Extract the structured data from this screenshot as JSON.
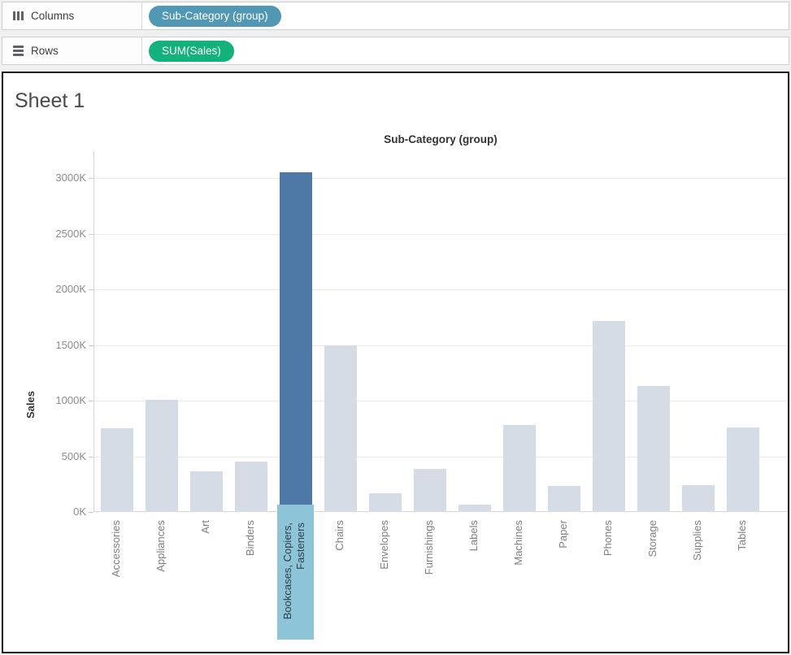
{
  "shelves": {
    "columns": {
      "label": "Columns",
      "pill": "Sub-Category (group)"
    },
    "rows": {
      "label": "Rows",
      "pill": "SUM(Sales)"
    }
  },
  "sheet": {
    "title": "Sheet 1"
  },
  "colors": {
    "columns_pill": "#5098b4",
    "rows_pill": "#14b27b",
    "bar_default": "#d6dce5",
    "bar_highlight": "#4e79a7",
    "highlight_label_bg": "#8ec4d7",
    "highlight_label_text": "#2c3e4a"
  },
  "chart_data": {
    "type": "bar",
    "title": "Sub-Category (group)",
    "xlabel": "Sub-Category (group)",
    "ylabel": "Sales",
    "y_unit": "K",
    "ylim": [
      0,
      3100
    ],
    "ytick_step": 500,
    "yticks": [
      "0K",
      "500K",
      "1000K",
      "1500K",
      "2000K",
      "2500K",
      "3000K"
    ],
    "grid": true,
    "legend": "none",
    "categories": [
      "Accessories",
      "Appliances",
      "Art",
      "Binders",
      "Bookcases, Copiers, Fasteners",
      "Chairs",
      "Envelopes",
      "Furnishings",
      "Labels",
      "Machines",
      "Paper",
      "Phones",
      "Storage",
      "Supplies",
      "Tables"
    ],
    "values": [
      750,
      1010,
      365,
      455,
      3050,
      1500,
      165,
      390,
      65,
      780,
      230,
      1715,
      1130,
      240,
      760
    ],
    "values_unit_note": "values are thousands (K) of Sales",
    "highlighted_index": 4,
    "highlighted_category": "Bookcases, Copiers, Fasteners",
    "highlighted_label_lines": [
      "Bookcases, Copiers,",
      "Fasteners"
    ]
  }
}
